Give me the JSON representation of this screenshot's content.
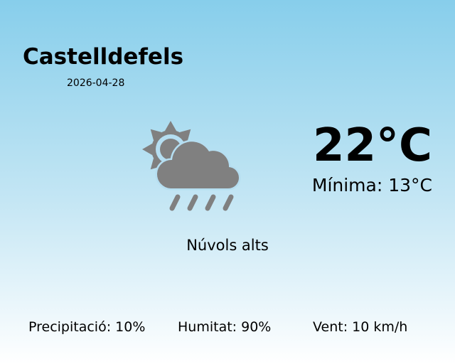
{
  "location": {
    "city": "Castelldefels",
    "date": "2026-04-28"
  },
  "current": {
    "temperature": "22°C",
    "minimum": "Mínima: 13°C",
    "description": "Núvols alts",
    "icon": "partly-cloudy-rain-icon",
    "icon_color": "#808080"
  },
  "stats": {
    "precipitation": "Precipitació: 10%",
    "humidity": "Humitat: 90%",
    "wind": "Vent: 10 km/h"
  },
  "colors": {
    "background_top": "#87ceeb",
    "background_bottom": "#ffffff"
  }
}
